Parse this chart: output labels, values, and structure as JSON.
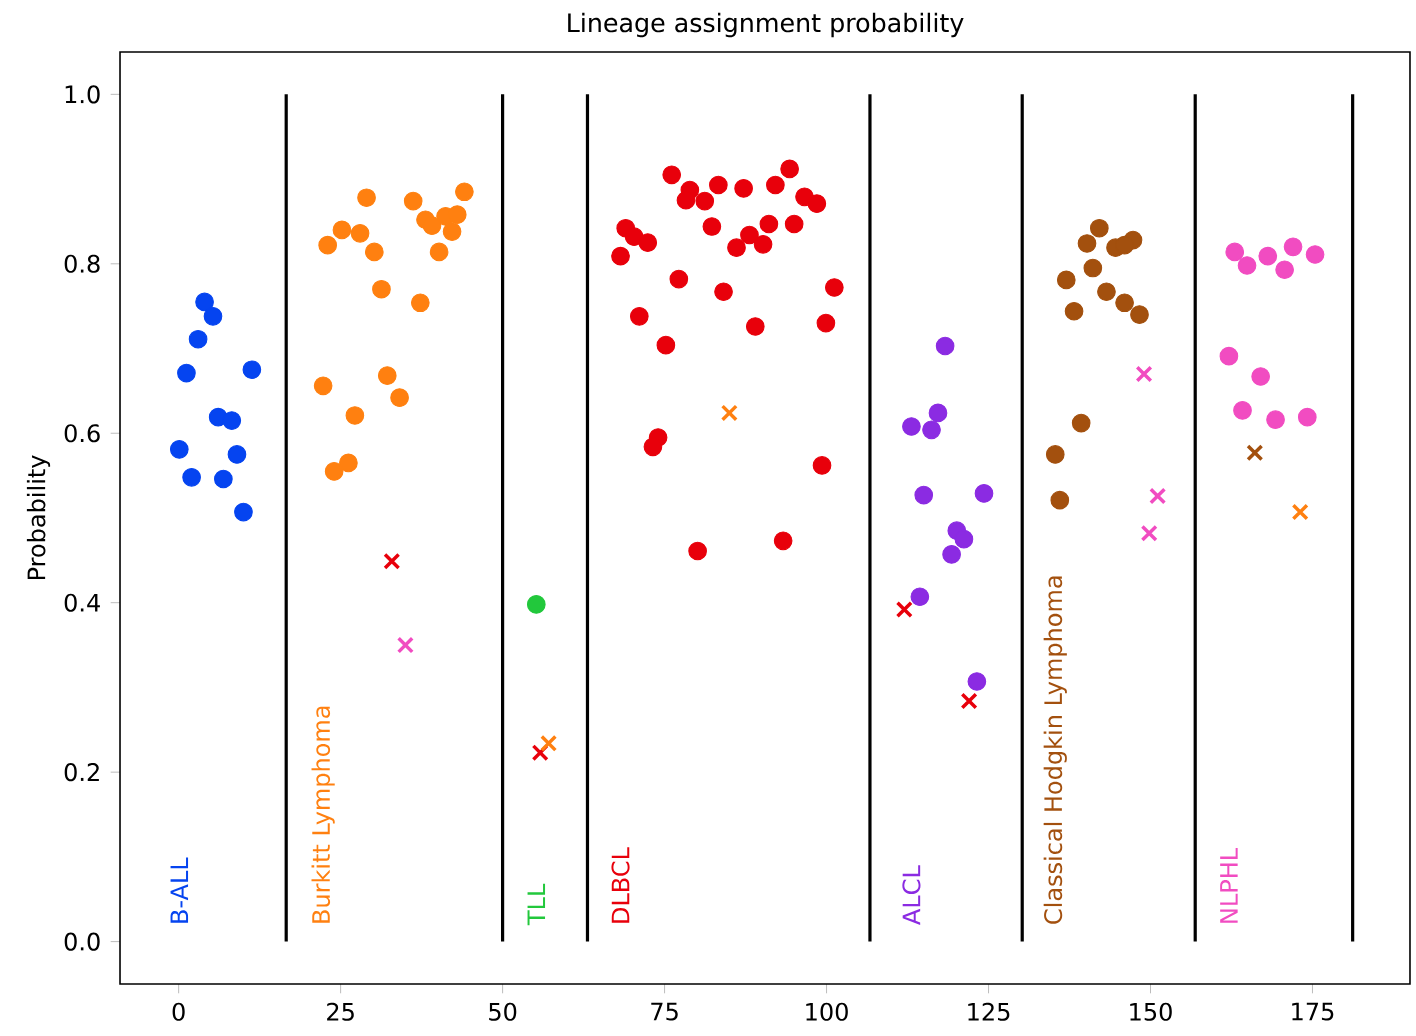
{
  "chart_data": {
    "type": "scatter",
    "title": "Lineage assignment probability",
    "ylabel": "Probability",
    "xlim": [
      -9.05,
      190.05
    ],
    "ylim": [
      -0.05,
      1.05
    ],
    "xticks": [
      0,
      25,
      50,
      75,
      100,
      125,
      150,
      175
    ],
    "yticks": [
      {
        "value": 0,
        "label": "0.0"
      },
      0.2,
      0.4,
      0.6,
      0.8,
      {
        "value": 1,
        "label": "1.0"
      }
    ],
    "grid": false,
    "ref_lines": [
      {
        "axis": "x",
        "value": 16.6,
        "color": "#000000"
      },
      {
        "axis": "x",
        "value": 50,
        "color": "#000000"
      },
      {
        "axis": "x",
        "value": 63.1,
        "color": "#000000"
      },
      {
        "axis": "x",
        "value": 106.7,
        "color": "#000000"
      },
      {
        "axis": "x",
        "value": 130.2,
        "color": "#000000"
      },
      {
        "axis": "x",
        "value": 156.9,
        "color": "#000000"
      },
      {
        "axis": "x",
        "value": 181.2,
        "color": "#000000"
      }
    ],
    "series": [
      {
        "name": "B-ALL",
        "color": "#0544f0",
        "marker": "circle",
        "x": [
          0.1,
          4.0,
          5.3,
          3.0,
          1.2,
          11.3,
          6.1,
          8.2,
          9.0,
          2.0,
          6.9,
          10.0
        ],
        "values": [
          0.581,
          0.755,
          0.738,
          0.711,
          0.671,
          0.675,
          0.619,
          0.615,
          0.575,
          0.548,
          0.546,
          0.507
        ]
      },
      {
        "name": "Burkitt Lymphoma",
        "color": "#ff8010",
        "marker": "circle",
        "x": [
          22.3,
          29.0,
          44.1,
          36.2,
          38.1,
          41.2,
          43.0,
          39.1,
          42.2,
          25.2,
          28.0,
          23.0,
          30.2,
          40.2,
          31.3,
          37.3,
          32.2,
          34.1,
          27.2,
          26.2,
          24.0
        ],
        "values": [
          0.656,
          0.878,
          0.885,
          0.874,
          0.852,
          0.856,
          0.858,
          0.845,
          0.838,
          0.84,
          0.836,
          0.822,
          0.814,
          0.814,
          0.77,
          0.754,
          0.668,
          0.642,
          0.621,
          0.565,
          0.555
        ]
      },
      {
        "name": "TLL",
        "color": "#22c83c",
        "marker": "circle",
        "x": [
          55.2
        ],
        "values": [
          0.398
        ]
      },
      {
        "name": "DLBCL",
        "color": "#e8000b",
        "marker": "circle",
        "x": [
          68.2,
          76.1,
          94.3,
          78.9,
          83.3,
          87.2,
          92.1,
          78.3,
          81.2,
          96.6,
          98.5,
          69.0,
          70.3,
          72.4,
          82.3,
          91.1,
          95.0,
          88.1,
          90.2,
          86.1,
          77.2,
          84.1,
          101.2,
          71.1,
          89.0,
          99.9,
          75.2,
          74.0,
          73.2,
          99.3,
          93.3,
          80.1
        ],
        "values": [
          0.809,
          0.905,
          0.912,
          0.887,
          0.893,
          0.889,
          0.893,
          0.875,
          0.874,
          0.879,
          0.871,
          0.842,
          0.832,
          0.825,
          0.844,
          0.847,
          0.847,
          0.834,
          0.823,
          0.819,
          0.782,
          0.767,
          0.772,
          0.738,
          0.726,
          0.73,
          0.704,
          0.595,
          0.584,
          0.562,
          0.473,
          0.461
        ]
      },
      {
        "name": "ALCL",
        "color": "#8b2be2",
        "marker": "circle",
        "x": [
          113.1,
          118.3,
          117.2,
          116.2,
          115.0,
          124.3,
          120.1,
          121.2,
          119.3,
          114.4,
          123.2
        ],
        "values": [
          0.608,
          0.703,
          0.624,
          0.604,
          0.527,
          0.529,
          0.485,
          0.475,
          0.457,
          0.407,
          0.307
        ]
      },
      {
        "name": "Classical Hodgkin Lymphoma",
        "color": "#a3500e",
        "marker": "circle",
        "x": [
          135.3,
          142.1,
          140.2,
          144.6,
          147.3,
          146.0,
          141.1,
          137.0,
          143.2,
          146.0,
          148.3,
          138.2,
          139.3,
          136.0
        ],
        "values": [
          0.575,
          0.842,
          0.824,
          0.819,
          0.828,
          0.822,
          0.795,
          0.781,
          0.767,
          0.754,
          0.74,
          0.744,
          0.612,
          0.521
        ]
      },
      {
        "name": "NLPHL",
        "color": "#f14cc1",
        "marker": "circle",
        "x": [
          162.1,
          163.0,
          164.9,
          168.1,
          170.7,
          172.0,
          175.4,
          167.0,
          164.2,
          169.3,
          174.2
        ],
        "values": [
          0.691,
          0.814,
          0.798,
          0.809,
          0.793,
          0.82,
          0.811,
          0.667,
          0.627,
          0.616,
          0.619
        ]
      },
      {
        "color": "#e8000b",
        "marker": "cross",
        "x": [
          32.9,
          55.8,
          112.0,
          122.0
        ],
        "values": [
          0.449,
          0.223,
          0.392,
          0.284
        ]
      },
      {
        "color": "#f14cc1",
        "marker": "cross",
        "x": [
          35.0,
          149.0,
          151.1,
          149.8
        ],
        "values": [
          0.35,
          0.67,
          0.526,
          0.482
        ]
      },
      {
        "color": "#ff8010",
        "marker": "cross",
        "x": [
          57.1,
          85.0,
          173.1
        ],
        "values": [
          0.234,
          0.624,
          0.507
        ]
      },
      {
        "color": "#a3500e",
        "marker": "cross",
        "x": [
          166.1
        ],
        "values": [
          0.577
        ]
      }
    ]
  }
}
